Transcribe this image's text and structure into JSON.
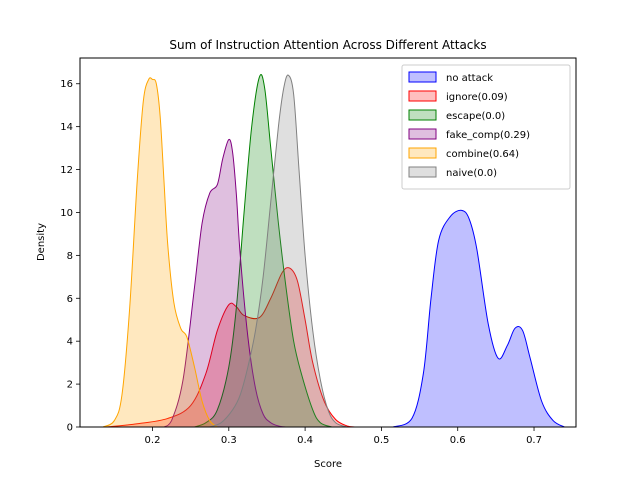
{
  "chart_data": {
    "type": "area",
    "title": "Sum of Instruction Attention Across Different Attacks",
    "xlabel": "Score",
    "ylabel": "Density",
    "xlim": [
      0.105,
      0.755
    ],
    "ylim": [
      0,
      17.2
    ],
    "xticks": [
      "0.2",
      "0.3",
      "0.4",
      "0.5",
      "0.6",
      "0.7"
    ],
    "yticks": [
      "0",
      "2",
      "4",
      "6",
      "8",
      "10",
      "12",
      "14",
      "16"
    ],
    "grid": false,
    "legend_position": "top-right",
    "series": [
      {
        "name": "no attack",
        "color": "#0000ff",
        "x": [
          0.515,
          0.54,
          0.555,
          0.565,
          0.575,
          0.59,
          0.605,
          0.615,
          0.625,
          0.64,
          0.653,
          0.665,
          0.675,
          0.685,
          0.695,
          0.71,
          0.725,
          0.74
        ],
        "y": [
          0,
          0.4,
          2.5,
          6.0,
          8.7,
          9.8,
          10.1,
          9.7,
          8.3,
          4.8,
          3.2,
          3.8,
          4.6,
          4.5,
          3.2,
          1.2,
          0.3,
          0
        ]
      },
      {
        "name": "ignore(0.09)",
        "color": "#ff0000",
        "x": [
          0.14,
          0.18,
          0.22,
          0.25,
          0.27,
          0.285,
          0.3,
          0.31,
          0.32,
          0.34,
          0.355,
          0.37,
          0.38,
          0.39,
          0.4,
          0.41,
          0.425,
          0.44,
          0.455,
          0.465
        ],
        "y": [
          0,
          0.15,
          0.4,
          1.0,
          2.5,
          4.5,
          5.7,
          5.6,
          5.2,
          5.1,
          6.0,
          7.2,
          7.4,
          6.8,
          5.0,
          3.0,
          1.2,
          0.35,
          0.05,
          0
        ]
      },
      {
        "name": "escape(0.0)",
        "color": "#008000",
        "x": [
          0.255,
          0.27,
          0.285,
          0.3,
          0.31,
          0.32,
          0.33,
          0.34,
          0.347,
          0.355,
          0.365,
          0.375,
          0.385,
          0.395,
          0.41,
          0.42,
          0.435
        ],
        "y": [
          0,
          0.2,
          0.8,
          2.8,
          5.6,
          10.0,
          14.0,
          16.3,
          15.8,
          13.0,
          9.5,
          6.5,
          4.0,
          2.5,
          0.8,
          0.2,
          0
        ]
      },
      {
        "name": "fake_comp(0.29)",
        "color": "#800080",
        "x": [
          0.215,
          0.225,
          0.24,
          0.255,
          0.265,
          0.275,
          0.285,
          0.292,
          0.3,
          0.305,
          0.31,
          0.315,
          0.325,
          0.335,
          0.345,
          0.355,
          0.365,
          0.375
        ],
        "y": [
          0,
          0.3,
          2.2,
          6.5,
          9.5,
          10.9,
          11.3,
          12.5,
          13.4,
          12.8,
          10.8,
          8.0,
          4.2,
          1.8,
          0.6,
          0.2,
          0.05,
          0
        ]
      },
      {
        "name": "combine(0.64)",
        "color": "#ffa500",
        "x": [
          0.135,
          0.15,
          0.16,
          0.17,
          0.18,
          0.188,
          0.195,
          0.2,
          0.205,
          0.21,
          0.215,
          0.22,
          0.228,
          0.237,
          0.245,
          0.255,
          0.265,
          0.275,
          0.285
        ],
        "y": [
          0,
          0.3,
          1.5,
          5.5,
          11.5,
          15.2,
          16.2,
          16.2,
          16.0,
          14.5,
          11.5,
          8.5,
          5.8,
          4.6,
          4.2,
          2.8,
          1.2,
          0.3,
          0
        ]
      },
      {
        "name": "naive(0.0)",
        "color": "#808080",
        "x": [
          0.275,
          0.29,
          0.305,
          0.315,
          0.325,
          0.335,
          0.345,
          0.355,
          0.365,
          0.372,
          0.378,
          0.385,
          0.392,
          0.4,
          0.41,
          0.42,
          0.43,
          0.44,
          0.455
        ],
        "y": [
          0,
          0.2,
          0.8,
          1.5,
          2.8,
          4.5,
          7.0,
          10.5,
          14.0,
          15.8,
          16.4,
          15.5,
          12.0,
          8.0,
          4.5,
          2.2,
          0.8,
          0.2,
          0
        ]
      }
    ]
  }
}
